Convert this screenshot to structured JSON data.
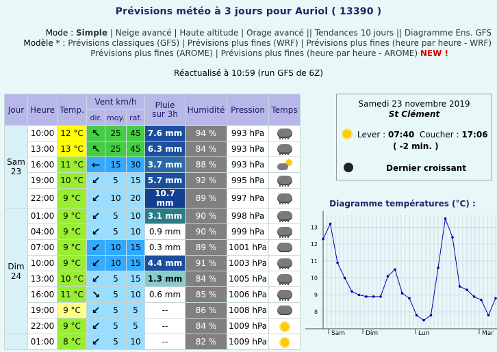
{
  "title": "Prévisions météo à 3 jours pour Auriol ( 13390 )",
  "mode": {
    "label": "Mode :",
    "items": [
      "Simple",
      "Neige avancé",
      "Haute altitude",
      "Orage avancé",
      "Tendances 10 jours",
      "Diagramme Ens. GFS"
    ]
  },
  "modele": {
    "label": "Modèle * :",
    "items": [
      "Prévisions classiques (GFS)",
      "Prévisions plus fines (WRF)",
      "Prévisions plus fines (heure par heure - WRF)",
      "Prévisions plus fines (AROME)",
      "Prévisions plus fines (heure par heure - AROME)"
    ],
    "new_badge": "NEW !"
  },
  "refresh": "Réactualisé à 10:59 (run GFS de 6Z)",
  "table": {
    "headers": {
      "jour": "Jour",
      "heure": "Heure",
      "temp": "Temp.",
      "vent": "Vent km/h",
      "dir": "dir.",
      "moy": "moy.",
      "raf": "raf.",
      "pluie1": "Pluie",
      "pluie2": "sur 3h",
      "hum": "Humidité",
      "pres": "Pression",
      "temps": "Temps"
    },
    "days": [
      {
        "name": "Sam",
        "num": "23"
      },
      {
        "name": "Dim",
        "num": "24"
      }
    ],
    "rows": [
      {
        "day": 0,
        "heure": "10:00",
        "temp": "12 °C",
        "tcol": "#ffff00",
        "dir": "↖",
        "dcol": "#44cc44",
        "moy": "25",
        "raf": "45",
        "wcol": "#44cc44",
        "pluie": "7.6 mm",
        "pcol": "#1a4fa0",
        "hum": "94 %",
        "pres": "993 hPa",
        "wx": "rain-cloud-icon"
      },
      {
        "day": 0,
        "heure": "13:00",
        "temp": "13 °C",
        "tcol": "#ffff00",
        "dir": "↖",
        "dcol": "#44cc44",
        "moy": "25",
        "raf": "45",
        "wcol": "#44cc44",
        "pluie": "6.3 mm",
        "pcol": "#1a4fa0",
        "hum": "84 %",
        "pres": "993 hPa",
        "wx": "rain-cloud-icon"
      },
      {
        "day": 0,
        "heure": "16:00",
        "temp": "11 °C",
        "tcol": "#99ee33",
        "dir": "←",
        "dcol": "#33aaff",
        "moy": "15",
        "raf": "30",
        "wcol": "#33aaff",
        "pluie": "3.7 mm",
        "pcol": "#2a6aa8",
        "hum": "88 %",
        "pres": "993 hPa",
        "wx": "sun-cloud-icon"
      },
      {
        "day": 0,
        "heure": "19:00",
        "temp": "10 °C",
        "tcol": "#99ee33",
        "dir": "↙",
        "dcol": "#99ddff",
        "moy": "5",
        "raf": "15",
        "wcol": "#99ddff",
        "pluie": "5.7 mm",
        "pcol": "#1a4fa0",
        "hum": "92 %",
        "pres": "995 hPa",
        "wx": "rain-cloud-icon"
      },
      {
        "day": 0,
        "heure": "22:00",
        "temp": "9 °C",
        "tcol": "#99ee33",
        "dir": "↙",
        "dcol": "#99ddff",
        "moy": "10",
        "raf": "20",
        "wcol": "#99ddff",
        "pluie": "10.7 mm",
        "pcol": "#123f90",
        "hum": "89 %",
        "pres": "997 hPa",
        "wx": "rain-cloud-icon"
      },
      {
        "day": 1,
        "heure": "01:00",
        "temp": "9 °C",
        "tcol": "#99ee33",
        "dir": "↙",
        "dcol": "#99ddff",
        "moy": "5",
        "raf": "10",
        "wcol": "#99ddff",
        "pluie": "3.1 mm",
        "pcol": "#2a7a8a",
        "hum": "90 %",
        "pres": "998 hPa",
        "wx": "rain-cloud-icon"
      },
      {
        "day": 1,
        "heure": "04:00",
        "temp": "9 °C",
        "tcol": "#99ee33",
        "dir": "↙",
        "dcol": "#99ddff",
        "moy": "5",
        "raf": "10",
        "wcol": "#99ddff",
        "pluie": "0.9 mm",
        "pcol": "#ffffff",
        "hum": "90 %",
        "pres": "999 hPa",
        "wx": "rain-cloud-icon"
      },
      {
        "day": 1,
        "heure": "07:00",
        "temp": "9 °C",
        "tcol": "#99ee33",
        "dir": "↙",
        "dcol": "#33aaff",
        "moy": "10",
        "raf": "15",
        "wcol": "#33aaff",
        "pluie": "0.3 mm",
        "pcol": "#ffffff",
        "hum": "89 %",
        "pres": "1001 hPa",
        "wx": "cloud-icon"
      },
      {
        "day": 1,
        "heure": "10:00",
        "temp": "9 °C",
        "tcol": "#99ee33",
        "dir": "↙",
        "dcol": "#33aaff",
        "moy": "10",
        "raf": "15",
        "wcol": "#33aaff",
        "pluie": "4.4 mm",
        "pcol": "#1a4fa0",
        "hum": "91 %",
        "pres": "1003 hPa",
        "wx": "rain-cloud-icon"
      },
      {
        "day": 1,
        "heure": "13:00",
        "temp": "10 °C",
        "tcol": "#99ee33",
        "dir": "↙",
        "dcol": "#99ddff",
        "moy": "5",
        "raf": "15",
        "wcol": "#99ddff",
        "pluie": "1.3 mm",
        "pcol": "#88cccc",
        "hum": "84 %",
        "pres": "1005 hPa",
        "wx": "rain-cloud-icon"
      },
      {
        "day": 1,
        "heure": "16:00",
        "temp": "11 °C",
        "tcol": "#99ee33",
        "dir": "↘",
        "dcol": "#99ddff",
        "moy": "5",
        "raf": "10",
        "wcol": "#99ddff",
        "pluie": "0.6 mm",
        "pcol": "#ffffff",
        "hum": "85 %",
        "pres": "1006 hPa",
        "wx": "rain-cloud-icon"
      },
      {
        "day": 1,
        "heure": "19:00",
        "temp": "9 °C",
        "tcol": "#ffff88",
        "dir": "↙",
        "dcol": "#99ddff",
        "moy": "5",
        "raf": "5",
        "wcol": "#99ddff",
        "pluie": "--",
        "pcol": "#ffffff",
        "hum": "86 %",
        "pres": "1008 hPa",
        "wx": "cloud-icon"
      },
      {
        "day": 1,
        "heure": "22:00",
        "temp": "9 °C",
        "tcol": "#99ee33",
        "dir": "↙",
        "dcol": "#99ddff",
        "moy": "5",
        "raf": "5",
        "wcol": "#99ddff",
        "pluie": "--",
        "pcol": "#ffffff",
        "hum": "84 %",
        "pres": "1009 hPa",
        "wx": "sun-icon"
      },
      {
        "day": 2,
        "heure": "01:00",
        "temp": "8 °C",
        "tcol": "#99ee33",
        "dir": "↙",
        "dcol": "#99ddff",
        "moy": "5",
        "raf": "10",
        "wcol": "#99ddff",
        "pluie": "--",
        "pcol": "#ffffff",
        "hum": "82 %",
        "pres": "1009 hPa",
        "wx": "sun-icon"
      }
    ]
  },
  "sunpanel": {
    "date": "Samedi 23 novembre 2019",
    "place": "St Clément",
    "lever_label": "Lever :",
    "lever": "07:40",
    "coucher_label": "Coucher :",
    "coucher": "17:06",
    "delta": "( -2 min. )",
    "moon": "Dernier croissant"
  },
  "chart_data": {
    "type": "line",
    "title": "Diagramme températures (°C) :",
    "x": [
      "Sam 10:00",
      "Sam 11:30",
      "Sam 13:00",
      "Sam 14:30",
      "Sam 16:00",
      "Sam 17:30",
      "Sam 19:00",
      "Sam 20:30",
      "Sam 22:00",
      "Dim 00:00",
      "Dim 01:00",
      "Dim 04:00",
      "Dim 07:00",
      "Dim 08:30",
      "Dim 10:00",
      "Dim 11:30",
      "Dim 13:00",
      "Dim 14:30",
      "Dim 16:00",
      "Dim 17:30",
      "Dim 19:00",
      "Dim 20:30",
      "Dim 22:00",
      "Lun 01:00",
      "Lun 04:00"
    ],
    "values": [
      12.3,
      13.2,
      10.9,
      10.0,
      9.2,
      9.0,
      8.9,
      8.9,
      8.9,
      10.1,
      10.5,
      9.1,
      8.8,
      7.8,
      7.5,
      7.8,
      10.6,
      13.5,
      12.4,
      9.5,
      9.3,
      8.9,
      8.7,
      7.8,
      8.8
    ],
    "yticks": [
      8,
      9,
      10,
      11,
      12,
      13
    ],
    "ylim": [
      7,
      13.7
    ],
    "xlabels": [
      "Sam",
      "Dim",
      "Lun",
      "Mar"
    ],
    "grid": true,
    "line_color": "#0000aa"
  }
}
